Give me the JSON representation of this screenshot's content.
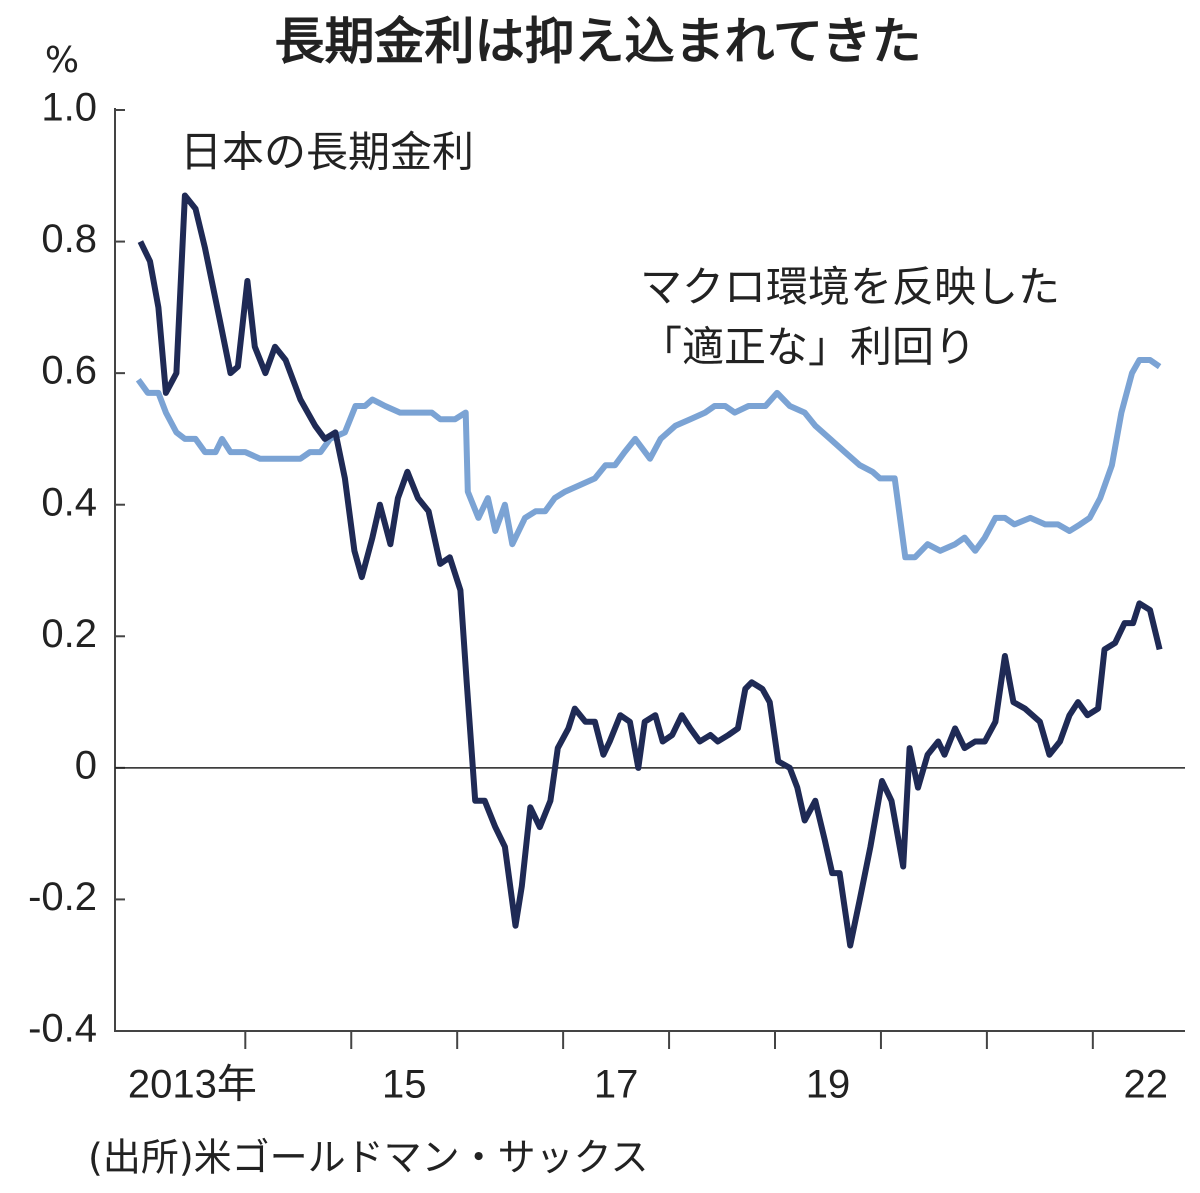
{
  "chart_data": {
    "type": "line",
    "title": "長期金利は抑え込まれてきた",
    "y_unit": "%",
    "source": "(出所)米ゴールドマン・サックス",
    "annotations": [
      "日本の長期金利",
      "マクロ環境を反映した",
      "「適正な」利回り"
    ],
    "xlim": [
      2012.77,
      2022.87
    ],
    "ylim": [
      -0.4,
      1.0
    ],
    "yticks": [
      {
        "value": 1,
        "label": "1.0"
      },
      0.8,
      0.6,
      0.4,
      0.2,
      0,
      -0.2,
      -0.4
    ],
    "xticks": [
      {
        "value": 2013.5,
        "label": "2013年"
      },
      {
        "value": 2015.5,
        "label": "15"
      },
      {
        "value": 2017.5,
        "label": "17"
      },
      {
        "value": 2019.5,
        "label": "19"
      },
      {
        "value": 2022.5,
        "label": "22"
      }
    ],
    "xtick_marks": [
      2014,
      2015,
      2016,
      2017,
      2018,
      2019,
      2020,
      2021,
      2022
    ],
    "zero_line": true,
    "series": [
      {
        "name": "日本の長期金利",
        "color": "#1f2a55",
        "x": [
          2013.01,
          2013.1,
          2013.18,
          2013.25,
          2013.35,
          2013.43,
          2013.53,
          2013.62,
          2013.76,
          2013.86,
          2013.93,
          2014.02,
          2014.09,
          2014.19,
          2014.28,
          2014.38,
          2014.52,
          2014.66,
          2014.75,
          2014.85,
          2014.94,
          2015.03,
          2015.1,
          2015.2,
          2015.27,
          2015.37,
          2015.44,
          2015.53,
          2015.63,
          2015.73,
          2015.84,
          2015.93,
          2016.03,
          2016.09,
          2016.17,
          2016.26,
          2016.36,
          2016.45,
          2016.55,
          2016.61,
          2016.69,
          2016.78,
          2016.88,
          2016.95,
          2017.05,
          2017.11,
          2017.21,
          2017.3,
          2017.38,
          2017.44,
          2017.54,
          2017.63,
          2017.71,
          2017.77,
          2017.87,
          2017.94,
          2018.03,
          2018.12,
          2018.2,
          2018.29,
          2018.39,
          2018.46,
          2018.56,
          2018.65,
          2018.72,
          2018.78,
          2018.88,
          2018.95,
          2019.03,
          2019.14,
          2019.21,
          2019.28,
          2019.38,
          2019.47,
          2019.54,
          2019.61,
          2019.71,
          2019.8,
          2019.9,
          2020.01,
          2020.1,
          2020.21,
          2020.27,
          2020.35,
          2020.44,
          2020.54,
          2020.6,
          2020.7,
          2020.79,
          2020.89,
          2020.98,
          2021.08,
          2021.17,
          2021.25,
          2021.36,
          2021.5,
          2021.59,
          2021.69,
          2021.78,
          2021.86,
          2021.95,
          2022.05,
          2022.11,
          2022.21,
          2022.3,
          2022.38,
          2022.44,
          2022.54,
          2022.63
        ],
        "values": [
          0.8,
          0.77,
          0.7,
          0.57,
          0.6,
          0.87,
          0.85,
          0.79,
          0.68,
          0.6,
          0.61,
          0.74,
          0.64,
          0.6,
          0.64,
          0.62,
          0.56,
          0.52,
          0.5,
          0.51,
          0.44,
          0.33,
          0.29,
          0.35,
          0.4,
          0.34,
          0.41,
          0.45,
          0.41,
          0.39,
          0.31,
          0.32,
          0.27,
          0.13,
          -0.05,
          -0.05,
          -0.09,
          -0.12,
          -0.24,
          -0.18,
          -0.06,
          -0.09,
          -0.05,
          0.03,
          0.06,
          0.09,
          0.07,
          0.07,
          0.02,
          0.04,
          0.08,
          0.07,
          0.0,
          0.07,
          0.08,
          0.04,
          0.05,
          0.08,
          0.06,
          0.04,
          0.05,
          0.04,
          0.05,
          0.06,
          0.12,
          0.13,
          0.12,
          0.1,
          0.01,
          0.0,
          -0.03,
          -0.08,
          -0.05,
          -0.11,
          -0.16,
          -0.16,
          -0.27,
          -0.2,
          -0.12,
          -0.02,
          -0.05,
          -0.15,
          0.03,
          -0.03,
          0.02,
          0.04,
          0.02,
          0.06,
          0.03,
          0.04,
          0.04,
          0.07,
          0.17,
          0.1,
          0.09,
          0.07,
          0.02,
          0.04,
          0.08,
          0.1,
          0.08,
          0.09,
          0.18,
          0.19,
          0.22,
          0.22,
          0.25,
          0.24,
          0.18
        ]
      },
      {
        "name": "マクロ環境を反映した「適正な」利回り",
        "color": "#7ba3d4",
        "x": [
          2012.99,
          2013.08,
          2013.18,
          2013.25,
          2013.35,
          2013.43,
          2013.53,
          2013.62,
          2013.72,
          2013.78,
          2013.86,
          2014.0,
          2014.14,
          2014.28,
          2014.38,
          2014.52,
          2014.61,
          2014.71,
          2014.8,
          2014.94,
          2015.04,
          2015.13,
          2015.2,
          2015.32,
          2015.46,
          2015.58,
          2015.67,
          2015.76,
          2015.84,
          2015.98,
          2016.08,
          2016.1,
          2016.2,
          2016.29,
          2016.36,
          2016.45,
          2016.52,
          2016.64,
          2016.74,
          2016.83,
          2016.92,
          2017.02,
          2017.16,
          2017.3,
          2017.4,
          2017.49,
          2017.58,
          2017.68,
          2017.82,
          2017.92,
          2018.06,
          2018.2,
          2018.34,
          2018.43,
          2018.53,
          2018.62,
          2018.75,
          2018.91,
          2019.02,
          2019.14,
          2019.28,
          2019.38,
          2019.52,
          2019.66,
          2019.8,
          2019.92,
          2019.99,
          2020.13,
          2020.23,
          2020.32,
          2020.44,
          2020.56,
          2020.7,
          2020.79,
          2020.89,
          2020.98,
          2021.08,
          2021.17,
          2021.26,
          2021.41,
          2021.55,
          2021.67,
          2021.78,
          2021.88,
          2021.97,
          2022.07,
          2022.18,
          2022.27,
          2022.37,
          2022.44,
          2022.54,
          2022.63
        ],
        "values": [
          0.59,
          0.57,
          0.57,
          0.54,
          0.51,
          0.5,
          0.5,
          0.48,
          0.48,
          0.5,
          0.48,
          0.48,
          0.47,
          0.47,
          0.47,
          0.47,
          0.48,
          0.48,
          0.5,
          0.51,
          0.55,
          0.55,
          0.56,
          0.55,
          0.54,
          0.54,
          0.54,
          0.54,
          0.53,
          0.53,
          0.54,
          0.42,
          0.38,
          0.41,
          0.36,
          0.4,
          0.34,
          0.38,
          0.39,
          0.39,
          0.41,
          0.42,
          0.43,
          0.44,
          0.46,
          0.46,
          0.48,
          0.5,
          0.47,
          0.5,
          0.52,
          0.53,
          0.54,
          0.55,
          0.55,
          0.54,
          0.55,
          0.55,
          0.57,
          0.55,
          0.54,
          0.52,
          0.5,
          0.48,
          0.46,
          0.45,
          0.44,
          0.44,
          0.32,
          0.32,
          0.34,
          0.33,
          0.34,
          0.35,
          0.33,
          0.35,
          0.38,
          0.38,
          0.37,
          0.38,
          0.37,
          0.37,
          0.36,
          0.37,
          0.38,
          0.41,
          0.46,
          0.54,
          0.6,
          0.62,
          0.62,
          0.61
        ]
      }
    ]
  }
}
